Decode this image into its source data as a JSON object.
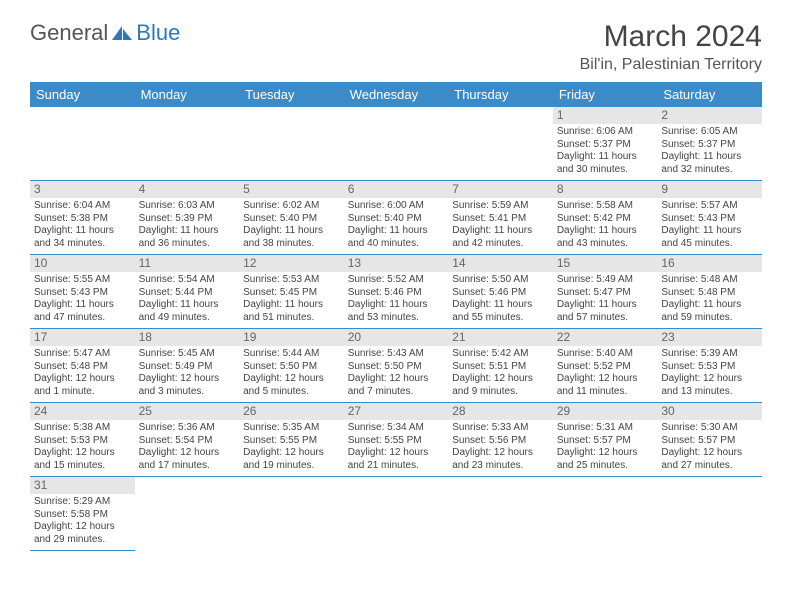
{
  "logo": {
    "text1": "General",
    "text2": "Blue"
  },
  "title": "March 2024",
  "location": "Bil'in, Palestinian Territory",
  "colors": {
    "header_bg": "#3b8bc8",
    "header_text": "#ffffff",
    "daynum_bg": "#e6e6e6",
    "rule": "#3b8bc8"
  },
  "day_headers": [
    "Sunday",
    "Monday",
    "Tuesday",
    "Wednesday",
    "Thursday",
    "Friday",
    "Saturday"
  ],
  "weeks": [
    [
      null,
      null,
      null,
      null,
      null,
      {
        "day": "1",
        "sunrise": "Sunrise: 6:06 AM",
        "sunset": "Sunset: 5:37 PM",
        "daylight1": "Daylight: 11 hours",
        "daylight2": "and 30 minutes."
      },
      {
        "day": "2",
        "sunrise": "Sunrise: 6:05 AM",
        "sunset": "Sunset: 5:37 PM",
        "daylight1": "Daylight: 11 hours",
        "daylight2": "and 32 minutes."
      }
    ],
    [
      {
        "day": "3",
        "sunrise": "Sunrise: 6:04 AM",
        "sunset": "Sunset: 5:38 PM",
        "daylight1": "Daylight: 11 hours",
        "daylight2": "and 34 minutes."
      },
      {
        "day": "4",
        "sunrise": "Sunrise: 6:03 AM",
        "sunset": "Sunset: 5:39 PM",
        "daylight1": "Daylight: 11 hours",
        "daylight2": "and 36 minutes."
      },
      {
        "day": "5",
        "sunrise": "Sunrise: 6:02 AM",
        "sunset": "Sunset: 5:40 PM",
        "daylight1": "Daylight: 11 hours",
        "daylight2": "and 38 minutes."
      },
      {
        "day": "6",
        "sunrise": "Sunrise: 6:00 AM",
        "sunset": "Sunset: 5:40 PM",
        "daylight1": "Daylight: 11 hours",
        "daylight2": "and 40 minutes."
      },
      {
        "day": "7",
        "sunrise": "Sunrise: 5:59 AM",
        "sunset": "Sunset: 5:41 PM",
        "daylight1": "Daylight: 11 hours",
        "daylight2": "and 42 minutes."
      },
      {
        "day": "8",
        "sunrise": "Sunrise: 5:58 AM",
        "sunset": "Sunset: 5:42 PM",
        "daylight1": "Daylight: 11 hours",
        "daylight2": "and 43 minutes."
      },
      {
        "day": "9",
        "sunrise": "Sunrise: 5:57 AM",
        "sunset": "Sunset: 5:43 PM",
        "daylight1": "Daylight: 11 hours",
        "daylight2": "and 45 minutes."
      }
    ],
    [
      {
        "day": "10",
        "sunrise": "Sunrise: 5:55 AM",
        "sunset": "Sunset: 5:43 PM",
        "daylight1": "Daylight: 11 hours",
        "daylight2": "and 47 minutes."
      },
      {
        "day": "11",
        "sunrise": "Sunrise: 5:54 AM",
        "sunset": "Sunset: 5:44 PM",
        "daylight1": "Daylight: 11 hours",
        "daylight2": "and 49 minutes."
      },
      {
        "day": "12",
        "sunrise": "Sunrise: 5:53 AM",
        "sunset": "Sunset: 5:45 PM",
        "daylight1": "Daylight: 11 hours",
        "daylight2": "and 51 minutes."
      },
      {
        "day": "13",
        "sunrise": "Sunrise: 5:52 AM",
        "sunset": "Sunset: 5:46 PM",
        "daylight1": "Daylight: 11 hours",
        "daylight2": "and 53 minutes."
      },
      {
        "day": "14",
        "sunrise": "Sunrise: 5:50 AM",
        "sunset": "Sunset: 5:46 PM",
        "daylight1": "Daylight: 11 hours",
        "daylight2": "and 55 minutes."
      },
      {
        "day": "15",
        "sunrise": "Sunrise: 5:49 AM",
        "sunset": "Sunset: 5:47 PM",
        "daylight1": "Daylight: 11 hours",
        "daylight2": "and 57 minutes."
      },
      {
        "day": "16",
        "sunrise": "Sunrise: 5:48 AM",
        "sunset": "Sunset: 5:48 PM",
        "daylight1": "Daylight: 11 hours",
        "daylight2": "and 59 minutes."
      }
    ],
    [
      {
        "day": "17",
        "sunrise": "Sunrise: 5:47 AM",
        "sunset": "Sunset: 5:48 PM",
        "daylight1": "Daylight: 12 hours",
        "daylight2": "and 1 minute."
      },
      {
        "day": "18",
        "sunrise": "Sunrise: 5:45 AM",
        "sunset": "Sunset: 5:49 PM",
        "daylight1": "Daylight: 12 hours",
        "daylight2": "and 3 minutes."
      },
      {
        "day": "19",
        "sunrise": "Sunrise: 5:44 AM",
        "sunset": "Sunset: 5:50 PM",
        "daylight1": "Daylight: 12 hours",
        "daylight2": "and 5 minutes."
      },
      {
        "day": "20",
        "sunrise": "Sunrise: 5:43 AM",
        "sunset": "Sunset: 5:50 PM",
        "daylight1": "Daylight: 12 hours",
        "daylight2": "and 7 minutes."
      },
      {
        "day": "21",
        "sunrise": "Sunrise: 5:42 AM",
        "sunset": "Sunset: 5:51 PM",
        "daylight1": "Daylight: 12 hours",
        "daylight2": "and 9 minutes."
      },
      {
        "day": "22",
        "sunrise": "Sunrise: 5:40 AM",
        "sunset": "Sunset: 5:52 PM",
        "daylight1": "Daylight: 12 hours",
        "daylight2": "and 11 minutes."
      },
      {
        "day": "23",
        "sunrise": "Sunrise: 5:39 AM",
        "sunset": "Sunset: 5:53 PM",
        "daylight1": "Daylight: 12 hours",
        "daylight2": "and 13 minutes."
      }
    ],
    [
      {
        "day": "24",
        "sunrise": "Sunrise: 5:38 AM",
        "sunset": "Sunset: 5:53 PM",
        "daylight1": "Daylight: 12 hours",
        "daylight2": "and 15 minutes."
      },
      {
        "day": "25",
        "sunrise": "Sunrise: 5:36 AM",
        "sunset": "Sunset: 5:54 PM",
        "daylight1": "Daylight: 12 hours",
        "daylight2": "and 17 minutes."
      },
      {
        "day": "26",
        "sunrise": "Sunrise: 5:35 AM",
        "sunset": "Sunset: 5:55 PM",
        "daylight1": "Daylight: 12 hours",
        "daylight2": "and 19 minutes."
      },
      {
        "day": "27",
        "sunrise": "Sunrise: 5:34 AM",
        "sunset": "Sunset: 5:55 PM",
        "daylight1": "Daylight: 12 hours",
        "daylight2": "and 21 minutes."
      },
      {
        "day": "28",
        "sunrise": "Sunrise: 5:33 AM",
        "sunset": "Sunset: 5:56 PM",
        "daylight1": "Daylight: 12 hours",
        "daylight2": "and 23 minutes."
      },
      {
        "day": "29",
        "sunrise": "Sunrise: 5:31 AM",
        "sunset": "Sunset: 5:57 PM",
        "daylight1": "Daylight: 12 hours",
        "daylight2": "and 25 minutes."
      },
      {
        "day": "30",
        "sunrise": "Sunrise: 5:30 AM",
        "sunset": "Sunset: 5:57 PM",
        "daylight1": "Daylight: 12 hours",
        "daylight2": "and 27 minutes."
      }
    ],
    [
      {
        "day": "31",
        "sunrise": "Sunrise: 5:29 AM",
        "sunset": "Sunset: 5:58 PM",
        "daylight1": "Daylight: 12 hours",
        "daylight2": "and 29 minutes."
      },
      null,
      null,
      null,
      null,
      null,
      null
    ]
  ]
}
